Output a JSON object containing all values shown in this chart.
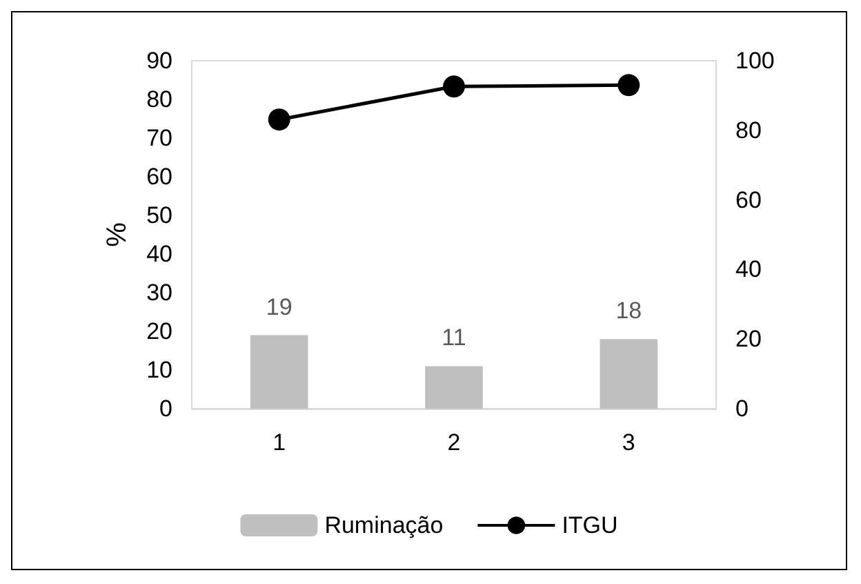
{
  "chart_data": {
    "type": "bar",
    "ylabel": "%",
    "categories": [
      "1",
      "2",
      "3"
    ],
    "series": [
      {
        "name": "Ruminação",
        "color": "#bfbfbf",
        "values": [
          19,
          11,
          18
        ],
        "value_labels": [
          "19",
          "11",
          "18"
        ]
      },
      {
        "name": "ITGU",
        "type": "line",
        "axis": "y2",
        "color": "#000000",
        "values": [
          83.1,
          92.6,
          93.0
        ]
      }
    ],
    "ylim": [
      0,
      90
    ],
    "yticks": [
      0,
      10,
      20,
      30,
      40,
      50,
      60,
      70,
      80,
      90
    ],
    "y2lim": [
      0,
      100
    ],
    "y2ticks": [
      0,
      20,
      40,
      60,
      80,
      100
    ],
    "legend": "bottom",
    "marker": "circle",
    "line_style": "solid",
    "grid": false
  }
}
